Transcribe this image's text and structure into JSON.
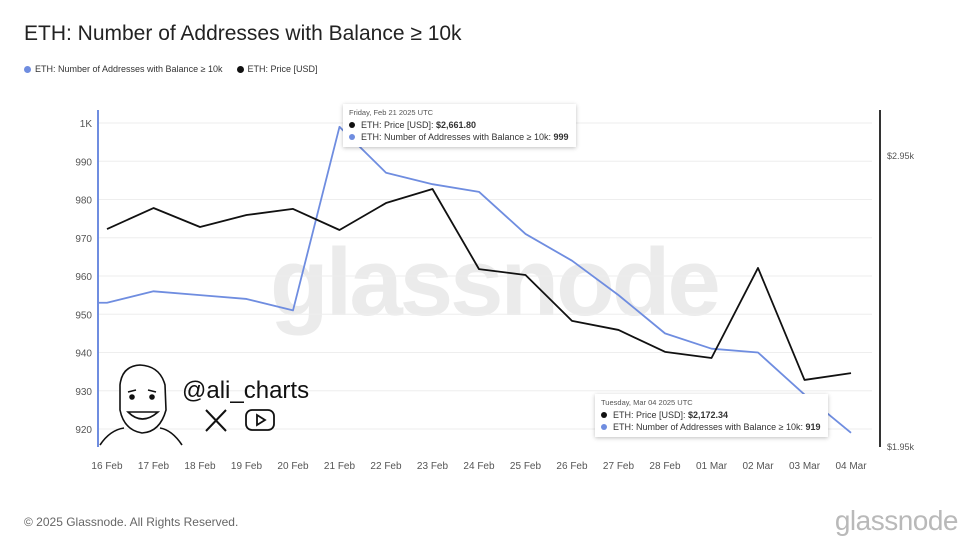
{
  "title": "ETH: Number of Addresses with Balance ≥ 10k",
  "legend": [
    {
      "label": "ETH: Number of Addresses with Balance ≥ 10k",
      "color": "#6f8de0"
    },
    {
      "label": "ETH: Price [USD]",
      "color": "#111111"
    }
  ],
  "watermark": "glassnode",
  "branding": {
    "handle": "@ali_charts",
    "icons": [
      "caricature-avatar",
      "x-logo-icon",
      "youtube-icon"
    ]
  },
  "tooltips": [
    {
      "date": "Friday, Feb 21 2025 UTC",
      "price_label": "ETH: Price [USD]: ",
      "price_value": "$2,661.80",
      "addr_label": "ETH: Number of Addresses with Balance ≥ 10k: ",
      "addr_value": "999"
    },
    {
      "date": "Tuesday, Mar 04 2025 UTC",
      "price_label": "ETH: Price [USD]: ",
      "price_value": "$2,172.34",
      "addr_label": "ETH: Number of Addresses with Balance ≥ 10k: ",
      "addr_value": "919"
    }
  ],
  "footer": "© 2025 Glassnode. All Rights Reserved.",
  "logo": "glassnode",
  "chart_data": {
    "type": "line",
    "title": "ETH: Number of Addresses with Balance ≥ 10k",
    "categories": [
      "16 Feb",
      "17 Feb",
      "18 Feb",
      "19 Feb",
      "20 Feb",
      "21 Feb",
      "22 Feb",
      "23 Feb",
      "24 Feb",
      "25 Feb",
      "26 Feb",
      "27 Feb",
      "28 Feb",
      "01 Mar",
      "02 Mar",
      "03 Mar",
      "04 Mar"
    ],
    "series": [
      {
        "name": "ETH: Number of Addresses with Balance ≥ 10k",
        "axis": "left",
        "color": "#6f8de0",
        "values": [
          953,
          956,
          955,
          954,
          951,
          999,
          987,
          984,
          982,
          971,
          964,
          955,
          945,
          941,
          940,
          929,
          919
        ]
      },
      {
        "name": "ETH: Price [USD]",
        "axis": "right",
        "color": "#111111",
        "values": [
          2665,
          2737,
          2672,
          2713,
          2734,
          2661.8,
          2754,
          2802,
          2528,
          2508,
          2351,
          2320,
          2245,
          2224,
          2532,
          2149,
          2172.34
        ]
      }
    ],
    "y_left": {
      "ticks": [
        "920",
        "930",
        "940",
        "950",
        "960",
        "970",
        "980",
        "990",
        "1K"
      ],
      "tick_values": [
        920,
        930,
        940,
        950,
        960,
        970,
        980,
        990,
        1000
      ]
    },
    "y_right": {
      "ticks": [
        "$1.95k",
        "$2.95k"
      ],
      "tick_values": [
        1950,
        2950
      ]
    },
    "grid": true,
    "legend_position": "top-left"
  }
}
